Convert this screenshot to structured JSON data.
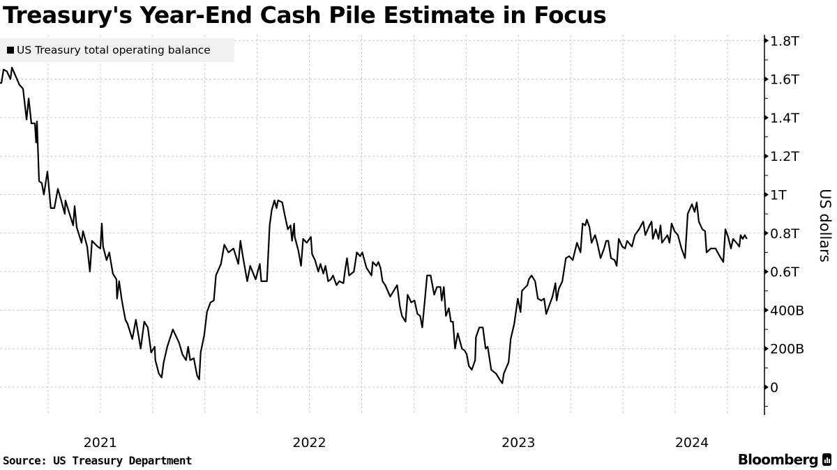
{
  "title": "Treasury's Year-End Cash Pile Estimate in Focus",
  "source": "Source: US Treasury Department",
  "brand": "Bloomberg",
  "chart_data": {
    "type": "line",
    "title": "Treasury's Year-End Cash Pile Estimate in Focus",
    "xlabel": "",
    "ylabel": "US dollars",
    "ylabel_position": "right",
    "legend": [
      {
        "name": "US Treasury total operating balance",
        "color": "#000000"
      }
    ],
    "legend_position": "top-left",
    "grid": true,
    "xlim": [
      2021.01,
      2024.667
    ],
    "ylim": [
      -130,
      1810
    ],
    "x_unit": "decimal year",
    "y_unit": "billions USD",
    "x_ticks": [
      {
        "label": "2021",
        "at": 2021.5
      },
      {
        "label": "2022",
        "at": 2022.5
      },
      {
        "label": "2023",
        "at": 2023.5
      },
      {
        "label": "2024",
        "at": 2024.33
      }
    ],
    "y_ticks": [
      {
        "label": "1.8T",
        "v": 1800
      },
      {
        "label": "1.6T",
        "v": 1600
      },
      {
        "label": "1.4T",
        "v": 1400
      },
      {
        "label": "1.2T",
        "v": 1200
      },
      {
        "label": "1T",
        "v": 1000
      },
      {
        "label": "0.8T",
        "v": 800
      },
      {
        "label": "0.6T",
        "v": 600
      },
      {
        "label": "400B",
        "v": 400
      },
      {
        "label": "200B",
        "v": 200
      },
      {
        "label": "0",
        "v": 0
      }
    ],
    "series": [
      {
        "name": "US Treasury total operating balance",
        "color": "#000000",
        "x": [
          2021.01,
          2021.017,
          2021.027,
          2021.043,
          2021.06,
          2021.067,
          2021.087,
          2021.103,
          2021.12,
          2021.137,
          2021.147,
          2021.16,
          2021.177,
          2021.183,
          2021.187,
          2021.197,
          2021.21,
          2021.22,
          2021.237,
          2021.253,
          2021.27,
          2021.287,
          2021.3,
          2021.32,
          2021.323,
          2021.34,
          2021.36,
          2021.367,
          2021.377,
          2021.4,
          2021.407,
          2021.427,
          2021.44,
          2021.45,
          2021.477,
          2021.49,
          2021.497,
          2021.503,
          2021.52,
          2021.533,
          2021.55,
          2021.567,
          2021.57,
          2021.58,
          2021.593,
          2021.61,
          2021.62,
          2021.643,
          2021.66,
          2021.683,
          2021.7,
          2021.717,
          2021.733,
          2021.75,
          2021.753,
          2021.77,
          2021.783,
          2021.793,
          2021.81,
          2021.837,
          2021.85,
          2021.867,
          2021.883,
          2021.9,
          2021.91,
          2021.92,
          2021.937,
          2021.953,
          2021.963,
          2021.97,
          2021.987,
          2022.0,
          2022.017,
          2022.033,
          2022.043,
          2022.067,
          2022.083,
          2022.103,
          2022.127,
          2022.15,
          2022.16,
          2022.173,
          2022.193,
          2022.207,
          2022.233,
          2022.253,
          2022.26,
          2022.287,
          2022.3,
          2022.31,
          2022.323,
          2022.333,
          2022.34,
          2022.36,
          2022.373,
          2022.387,
          2022.4,
          2022.407,
          2022.417,
          2022.42,
          2022.437,
          2022.45,
          2022.46,
          2022.477,
          2022.497,
          2022.503,
          2022.517,
          2022.533,
          2022.543,
          2022.557,
          2022.567,
          2022.58,
          2022.593,
          2022.603,
          2022.62,
          2022.633,
          2022.653,
          2022.66,
          2022.67,
          2022.68,
          2022.703,
          2022.717,
          2022.733,
          2022.743,
          2022.763,
          2022.787,
          2022.793,
          2022.81,
          2022.82,
          2022.83,
          2022.84,
          2022.853,
          2022.877,
          2022.893,
          2022.91,
          2022.923,
          2022.933,
          2022.95,
          2022.96,
          2022.977,
          2022.993,
          2023.007,
          2023.02,
          2023.03,
          2023.043,
          2023.053,
          2023.07,
          2023.087,
          2023.1,
          2023.117,
          2023.123,
          2023.133,
          2023.143,
          2023.157,
          2023.167,
          2023.177,
          2023.187,
          2023.2,
          2023.22,
          2023.233,
          2023.243,
          2023.253,
          2023.267,
          2023.283,
          2023.287,
          2023.303,
          2023.32,
          2023.333,
          2023.343,
          2023.36,
          2023.383,
          2023.4,
          2023.413,
          2023.42,
          2023.443,
          2023.453,
          2023.47,
          2023.487,
          2023.5,
          2023.507,
          2023.533,
          2023.54,
          2023.553,
          2023.57,
          2023.583,
          2023.6,
          2023.613,
          2023.623,
          2023.643,
          2023.653,
          2023.667,
          2023.673,
          2023.683,
          2023.7,
          2023.717,
          2023.733,
          2023.75,
          2023.77,
          2023.787,
          2023.797,
          2023.81,
          2023.817,
          2023.83,
          2023.84,
          2023.857,
          2023.867,
          2023.883,
          2023.9,
          2023.91,
          2023.92,
          2023.933,
          2023.95,
          2023.96,
          2023.97,
          2023.987,
          2024.0,
          2024.01,
          2024.033,
          2024.047,
          2024.067,
          2024.087,
          2024.097,
          2024.117,
          2024.127,
          2024.133,
          2024.147,
          2024.16,
          2024.17,
          2024.177,
          2024.203,
          2024.213,
          2024.223,
          2024.237,
          2024.253,
          2024.27,
          2024.287,
          2024.3,
          2024.32,
          2024.333,
          2024.343,
          2024.353,
          2024.37,
          2024.383,
          2024.39,
          2024.41,
          2024.433,
          2024.453,
          2024.47,
          2024.48,
          2024.493,
          2024.507,
          2024.517,
          2024.533,
          2024.547,
          2024.553,
          2024.563,
          2024.573,
          2024.583
        ],
        "y": [
          1580,
          1580,
          1650,
          1640,
          1600,
          1660,
          1610,
          1570,
          1550,
          1390,
          1500,
          1370,
          1370,
          1270,
          1380,
          1070,
          1060,
          1000,
          1120,
          930,
          930,
          1030,
          980,
          900,
          970,
          910,
          840,
          940,
          830,
          750,
          810,
          730,
          600,
          760,
          730,
          720,
          850,
          730,
          660,
          700,
          590,
          560,
          460,
          550,
          450,
          350,
          330,
          250,
          350,
          200,
          340,
          310,
          180,
          210,
          140,
          70,
          50,
          130,
          210,
          300,
          270,
          230,
          170,
          140,
          210,
          140,
          150,
          60,
          40,
          180,
          270,
          390,
          440,
          450,
          580,
          640,
          740,
          700,
          720,
          640,
          760,
          670,
          550,
          630,
          560,
          640,
          550,
          550,
          840,
          920,
          970,
          930,
          970,
          960,
          890,
          820,
          840,
          760,
          850,
          780,
          710,
          630,
          770,
          750,
          780,
          690,
          660,
          600,
          640,
          590,
          630,
          550,
          560,
          580,
          530,
          550,
          540,
          600,
          670,
          580,
          600,
          700,
          680,
          700,
          620,
          580,
          650,
          630,
          650,
          620,
          550,
          530,
          470,
          500,
          530,
          420,
          370,
          340,
          480,
          440,
          450,
          380,
          370,
          310,
          460,
          580,
          580,
          480,
          520,
          520,
          450,
          520,
          370,
          410,
          340,
          340,
          200,
          280,
          200,
          190,
          170,
          110,
          90,
          140,
          260,
          310,
          310,
          200,
          210,
          90,
          70,
          40,
          20,
          70,
          130,
          250,
          330,
          460,
          390,
          500,
          530,
          560,
          580,
          550,
          460,
          450,
          460,
          380,
          440,
          470,
          540,
          450,
          510,
          550,
          670,
          680,
          660,
          750,
          700,
          850,
          840,
          870,
          830,
          750,
          790,
          750,
          670,
          720,
          760,
          760,
          670,
          660,
          630,
          770,
          730,
          720,
          760,
          730,
          790,
          820,
          860,
          790,
          840,
          860,
          770,
          820,
          770,
          840,
          750,
          790,
          750,
          850,
          810,
          790,
          720,
          670,
          900,
          950,
          910,
          960,
          860,
          820,
          810,
          700,
          720,
          720,
          680,
          650,
          820,
          780,
          720,
          770,
          750,
          730,
          790,
          770,
          790,
          770
        ]
      }
    ]
  }
}
